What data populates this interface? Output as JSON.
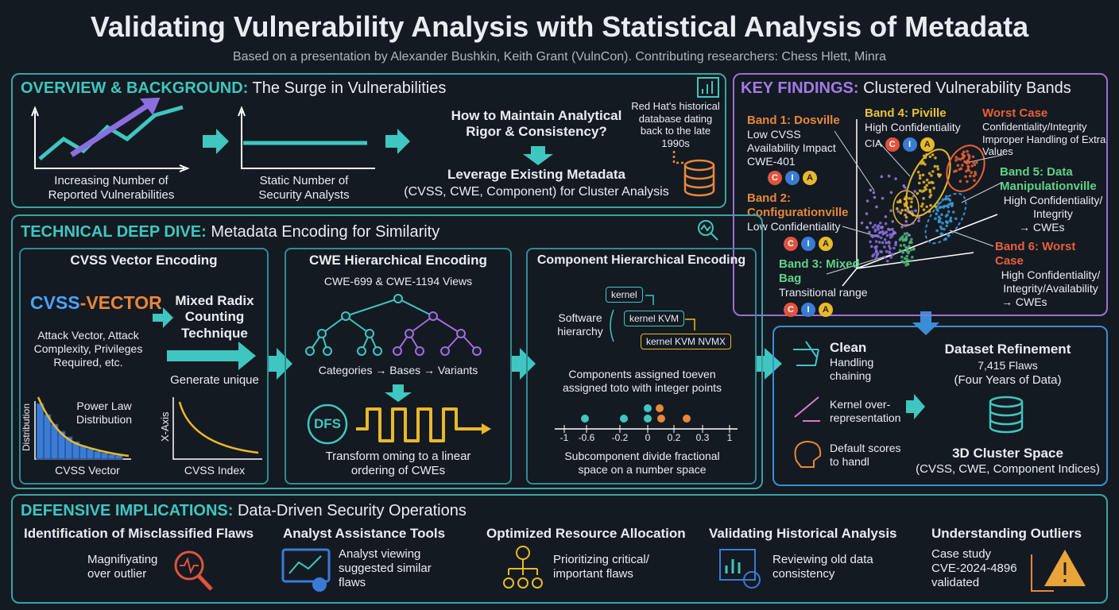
{
  "header": {
    "title": "Validating Vulnerability Analysis with Statistical Analysis of Metadata",
    "subtitle": "Based on a presentation by Alexander Bushkin, Keith Grant (VulnCon). Contributing researchers: Chess Hlett, Minra"
  },
  "overview": {
    "heading_bold": "OVERVIEW & BACKGROUND:",
    "heading": "The Surge in Vulnerabilities",
    "chart1_label": "Increasing Number of Reported Vulnerabilities",
    "chart2_label": "Static Number of Security Analysts",
    "question": "How to Maintain Analytical Rigor & Consistency?",
    "answer_title": "Leverage Existing Metadata",
    "answer_detail": "(CVSS, CWE, Component) for Cluster Analysis",
    "database_note": "Red Hat's historical database dating back to the late 1990s"
  },
  "deep_dive": {
    "heading_bold": "TECHNICAL DEEP DIVE:",
    "heading": "Metadata Encoding for Similarity",
    "cvss": {
      "title": "CVSS Vector Encoding",
      "logo_a": "CVSS",
      "logo_sep": "-",
      "logo_b": "VECTOR",
      "metrics": "Attack Vector, Attack Complexity, Privileges Required, etc.",
      "technique": "Mixed Radix Counting Technique",
      "generate": "Generate unique",
      "dist_ylabel": "Distribution",
      "dist_label": "Power Law Distribution",
      "dist_xlabel": "CVSS Vector",
      "index_ylabel": "X-Axis",
      "index_xlabel": "CVSS Index"
    },
    "cwe": {
      "title": "CWE Hierarchical Encoding",
      "views": "CWE-699 & CWE-1194 Views",
      "tree_labels": [
        "Categories",
        "Bases",
        "Variants"
      ],
      "dfs": "DFS",
      "transform": "Transform oming to a linear ordering of CWEs"
    },
    "component": {
      "title": "Component Hierarchical Encoding",
      "hierarchy_label": "Software hierarchy",
      "nodes": [
        "kernel",
        "kernel KVM",
        "kernel KVM NVMX"
      ],
      "assigned": "Components assigned toeven assigned toto with integer points",
      "axis_labels": [
        "-1",
        "-0.6",
        "-0.2",
        "0",
        "0.2",
        "0.3",
        "1"
      ],
      "subcomponent": "Subcomponent divide fractional space on a number space"
    }
  },
  "findings": {
    "heading_bold": "KEY FINDINGS:",
    "heading": "Clustered Vulnerability Bands",
    "cia": [
      "C",
      "I",
      "A"
    ],
    "cia_label": "CIA",
    "bands": [
      {
        "title": "Band 1: Dosville",
        "detail": "Low CVSS Availability Impact CWE-401"
      },
      {
        "title": "Band 2: Configurationville",
        "detail": "Low Confidentiality"
      },
      {
        "title": "Band 3: Mixed Bag",
        "detail": "Transitional range"
      },
      {
        "title": "Band 4: Piville",
        "detail": "High Confidentiality"
      },
      {
        "title": "Worst Case",
        "detail": "Confidentiality/Integrity Improper Handling of Extra Values"
      },
      {
        "title": "Band 5: Data Manipulationville",
        "detail": "High Confidentiality/ Integrity",
        "cwes": "→ CWEs"
      },
      {
        "title": "Band 6: Worst Case",
        "detail": "High Confidentiality/ Integrity/Availability",
        "cwes": "→ CWEs"
      }
    ]
  },
  "refinement": {
    "items": [
      {
        "title": "Clean",
        "detail": "Handling chaining"
      },
      {
        "detail": "Kernel over-representation"
      },
      {
        "detail": "Default scores to handl"
      }
    ],
    "title": "Dataset Refinement",
    "flaws": "7,415 Flaws",
    "years": "(Four Years of Data)",
    "space_title": "3D Cluster Space",
    "space_detail": "(CVSS, CWE, Component Indices)"
  },
  "implications": {
    "heading_bold": "DEFENSIVE IMPLICATIONS:",
    "heading": "Data-Driven Security Operations",
    "items": [
      {
        "title": "Identification of Misclassified Flaws",
        "detail": "Magnifiyating over outlier"
      },
      {
        "title": "Analyst Assistance Tools",
        "detail": "Analyst viewing suggested similar flaws"
      },
      {
        "title": "Optimized Resource Allocation",
        "detail": "Prioritizing critical/ important flaws"
      },
      {
        "title": "Validating Historical Analysis",
        "detail": "Reviewing old data consistency"
      },
      {
        "title": "Understanding Outliers",
        "detail": "Case study CVE-2024-4896 validated"
      }
    ]
  }
}
